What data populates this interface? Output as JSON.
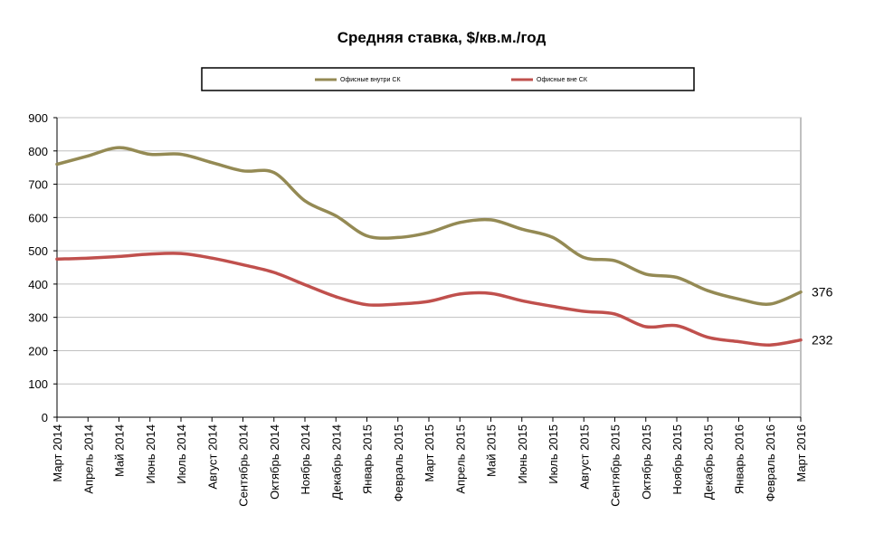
{
  "chart_data": {
    "type": "line",
    "title": "Средняя ставка, $/кв.м./год",
    "xlabel": "",
    "ylabel": "",
    "ylim": [
      0,
      900
    ],
    "ytick_step": 100,
    "grid": true,
    "legend_position": "top",
    "categories": [
      "Март 2014",
      "Апрель 2014",
      "Май 2014",
      "Июнь 2014",
      "Июль 2014",
      "Август 2014",
      "Сентябрь 2014",
      "Октябрь 2014",
      "Ноябрь 2014",
      "Декабрь 2014",
      "Январь 2015",
      "Февраль 2015",
      "Март 2015",
      "Апрель 2015",
      "Май 2015",
      "Июнь 2015",
      "Июль 2015",
      "Август 2015",
      "Сентябрь 2015",
      "Октябрь 2015",
      "Ноябрь 2015",
      "Декабрь 2015",
      "Январь 2016",
      "Февраль 2016",
      "Март 2016"
    ],
    "series": [
      {
        "name": "Офисные  внутри СК",
        "color": "#948A54",
        "values": [
          760,
          785,
          810,
          790,
          790,
          765,
          740,
          735,
          650,
          605,
          545,
          540,
          555,
          585,
          593,
          565,
          540,
          480,
          470,
          430,
          420,
          380,
          355,
          340,
          376
        ],
        "end_label": "376"
      },
      {
        "name": "Офисные вне СК",
        "color": "#C0504D",
        "values": [
          475,
          478,
          483,
          490,
          492,
          478,
          458,
          435,
          398,
          362,
          338,
          340,
          348,
          370,
          372,
          350,
          333,
          318,
          310,
          272,
          275,
          240,
          227,
          217,
          232
        ],
        "end_label": "232"
      }
    ]
  }
}
